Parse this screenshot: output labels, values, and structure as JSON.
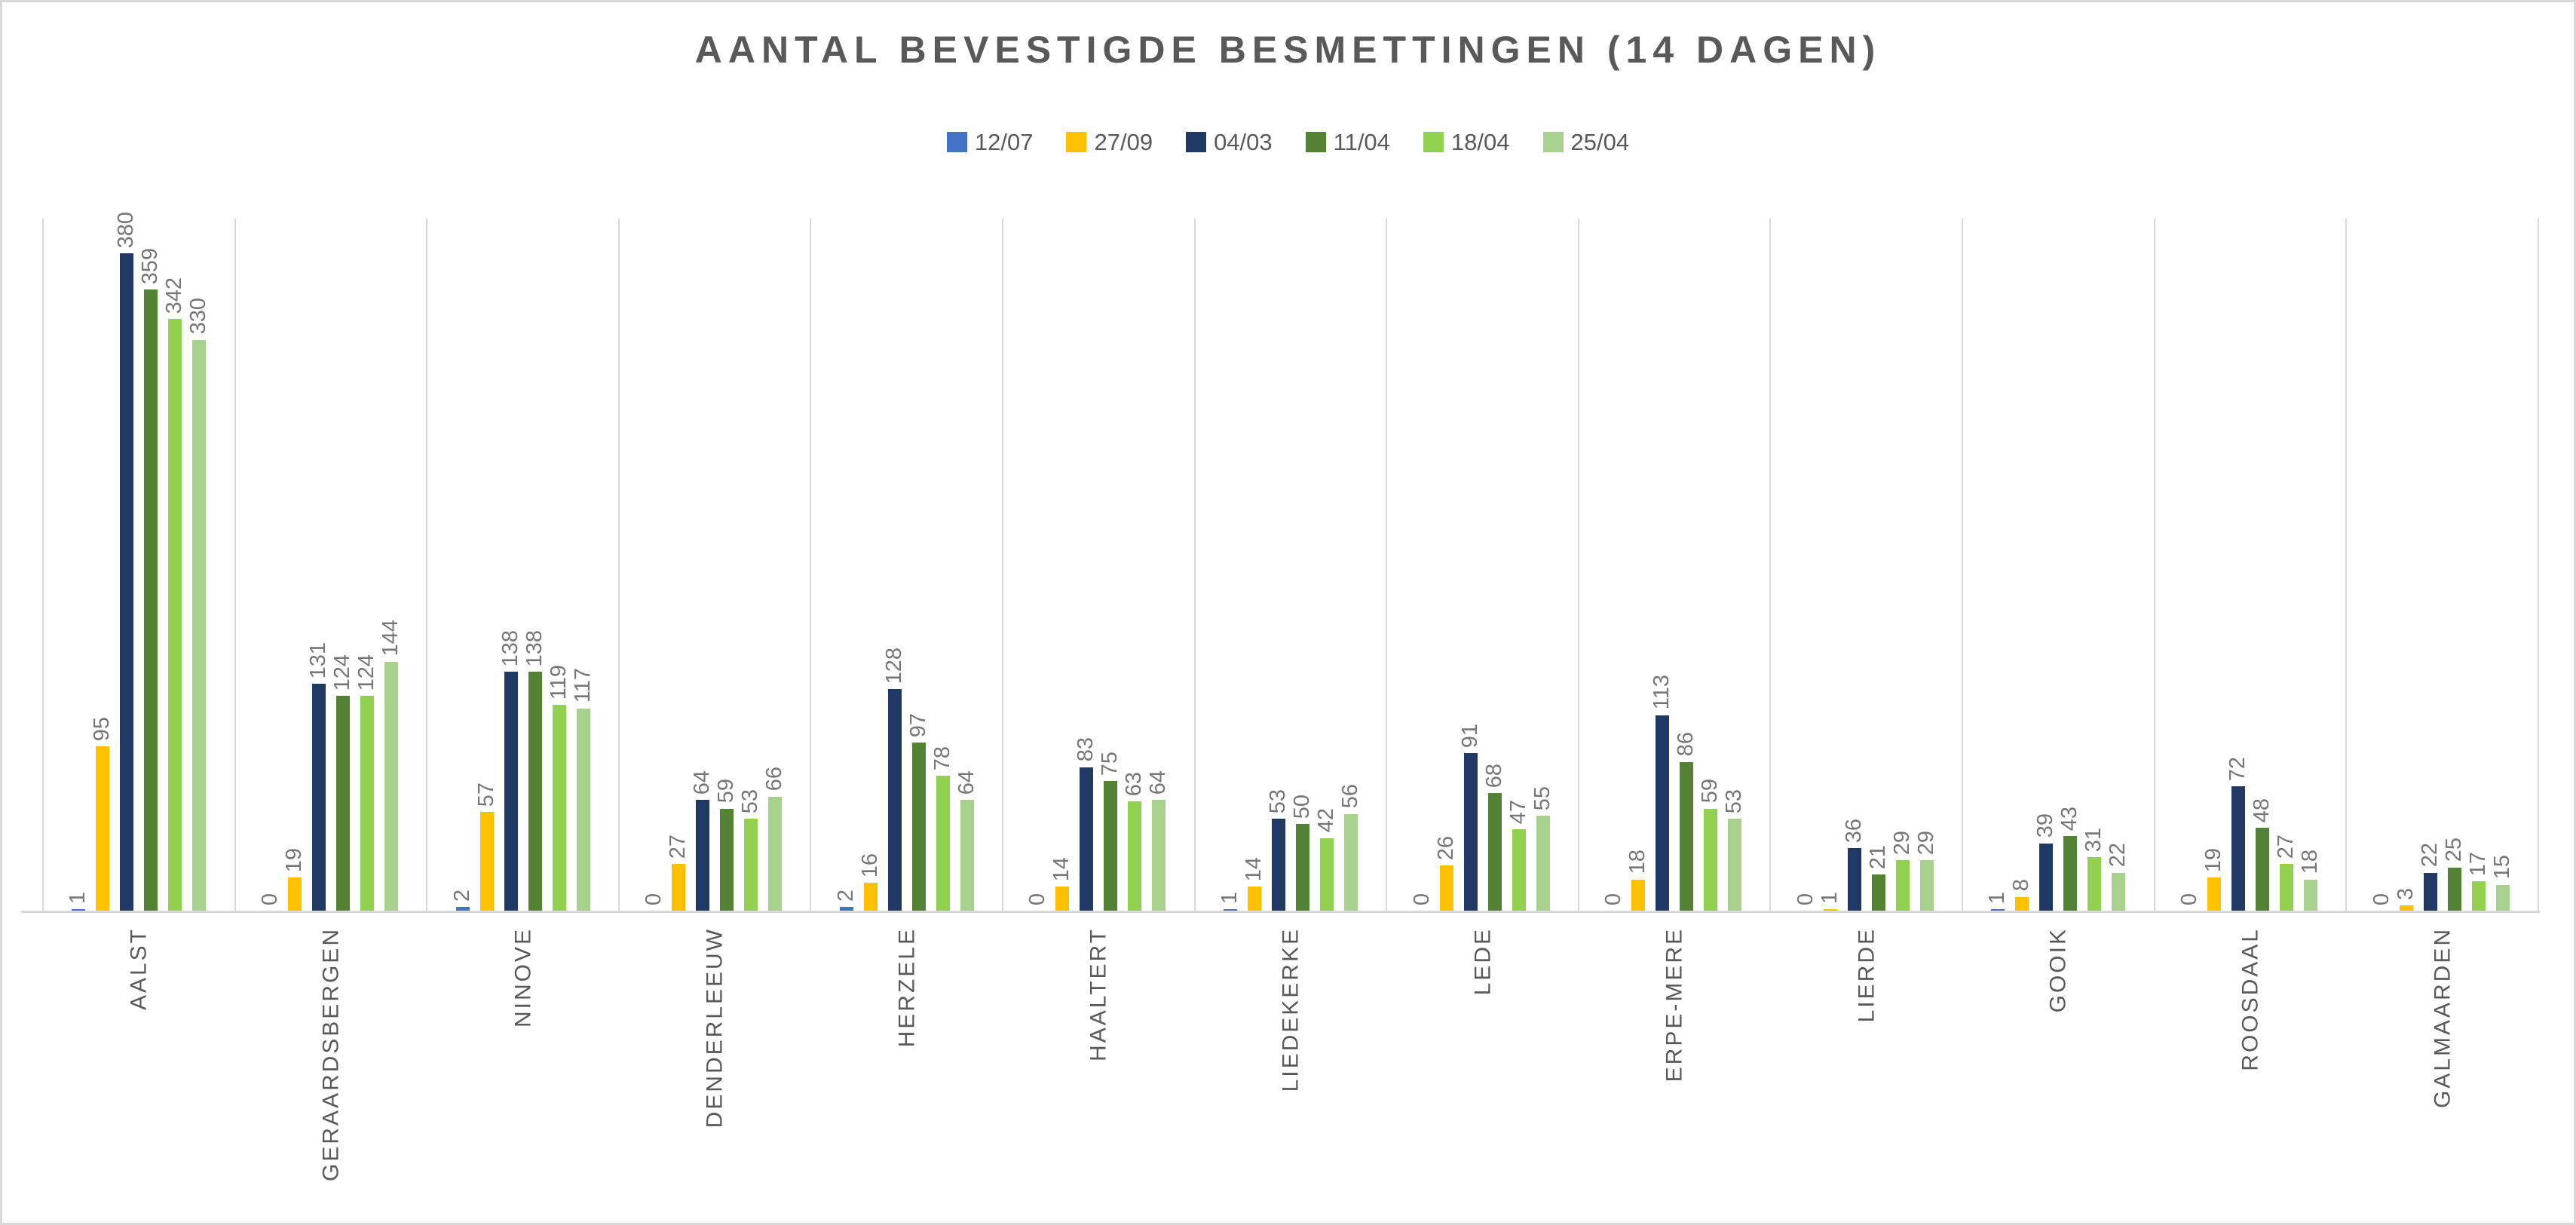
{
  "chart_data": {
    "type": "bar",
    "title": "AANTAL BEVESTIGDE BESMETTINGEN (14 DAGEN)",
    "categories": [
      "AALST",
      "GERAARDSBERGEN",
      "NINOVE",
      "DENDERLEEUW",
      "HERZELE",
      "HAALTERT",
      "LIEDEKERKE",
      "LEDE",
      "ERPE-MERE",
      "LIERDE",
      "GOOIK",
      "ROOSDAAL",
      "GALMAARDEN"
    ],
    "series": [
      {
        "name": "12/07",
        "color": "#4472C4",
        "values": [
          1,
          0,
          2,
          0,
          2,
          0,
          1,
          0,
          0,
          0,
          1,
          0,
          0
        ]
      },
      {
        "name": "27/09",
        "color": "#FFC000",
        "values": [
          95,
          19,
          57,
          27,
          16,
          14,
          14,
          26,
          18,
          1,
          8,
          19,
          3
        ]
      },
      {
        "name": "04/03",
        "color": "#1F3864",
        "values": [
          380,
          131,
          138,
          64,
          128,
          83,
          53,
          91,
          113,
          36,
          39,
          72,
          22
        ]
      },
      {
        "name": "11/04",
        "color": "#548235",
        "values": [
          359,
          124,
          138,
          59,
          97,
          75,
          50,
          68,
          86,
          21,
          43,
          48,
          25
        ]
      },
      {
        "name": "18/04",
        "color": "#92D050",
        "values": [
          342,
          124,
          119,
          53,
          78,
          63,
          42,
          47,
          59,
          29,
          31,
          27,
          17
        ]
      },
      {
        "name": "25/04",
        "color": "#A9D18E",
        "values": [
          330,
          144,
          117,
          66,
          64,
          64,
          56,
          55,
          53,
          29,
          22,
          18,
          15
        ]
      }
    ],
    "ylim": [
      0,
      400
    ],
    "xlabel": "",
    "ylabel": "",
    "grid": "vertical category separators only, no horizontal gridlines, no value axis",
    "legend_position": "top-center",
    "data_labels": "each bar labeled with its value, rotated 90deg reading bottom-to-top",
    "category_labels": "rotated 90deg reading bottom-to-top, anchored below axis"
  },
  "colors": {
    "background": "#FFFFFF",
    "frame_border": "#D9D9D9",
    "gridline": "#D9D9D9",
    "axis_line": "#D9D9D9",
    "title_text": "#595959",
    "legend_text": "#595959",
    "category_text": "#595959",
    "value_label_text": "#767676"
  }
}
